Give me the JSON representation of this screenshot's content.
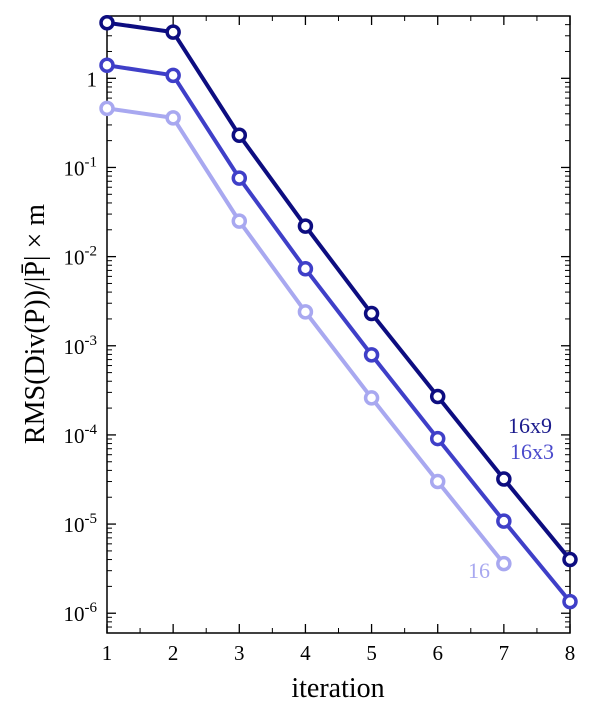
{
  "chart_data": {
    "type": "line",
    "title": "",
    "xlabel": "iteration",
    "ylabel": "RMS(Div(P))/|P̄| × m",
    "yscale": "log",
    "xlim": [
      1,
      8
    ],
    "ylim": [
      6e-07,
      5
    ],
    "grid": false,
    "xticks": [
      {
        "value": 1,
        "label": "1"
      },
      {
        "value": 2,
        "label": "2"
      },
      {
        "value": 3,
        "label": "3"
      },
      {
        "value": 4,
        "label": "4"
      },
      {
        "value": 5,
        "label": "5"
      },
      {
        "value": 6,
        "label": "6"
      },
      {
        "value": 7,
        "label": "7"
      },
      {
        "value": 8,
        "label": "8"
      }
    ],
    "yticks": [
      {
        "value": 1,
        "base": "1",
        "exp": ""
      },
      {
        "value": 0.1,
        "base": "10",
        "exp": "-1"
      },
      {
        "value": 0.01,
        "base": "10",
        "exp": "-2"
      },
      {
        "value": 0.001,
        "base": "10",
        "exp": "-3"
      },
      {
        "value": 0.0001,
        "base": "10",
        "exp": "-4"
      },
      {
        "value": 1e-05,
        "base": "10",
        "exp": "-5"
      },
      {
        "value": 1e-06,
        "base": "10",
        "exp": "-6"
      }
    ],
    "series": [
      {
        "name": "16x9",
        "color": "#0d0d80",
        "label_color": "#1a1a8c",
        "x": [
          1,
          2,
          3,
          4,
          5,
          6,
          7,
          8
        ],
        "values": [
          4.2,
          3.3,
          0.23,
          0.022,
          0.0023,
          0.00027,
          3.2e-05,
          4e-06
        ]
      },
      {
        "name": "16x3",
        "color": "#3f3fc8",
        "label_color": "#4a4acc",
        "x": [
          1,
          2,
          3,
          4,
          5,
          6,
          7,
          8
        ],
        "values": [
          1.4,
          1.08,
          0.076,
          0.0073,
          0.00079,
          9.1e-05,
          1.08e-05,
          1.35e-06
        ]
      },
      {
        "name": "16",
        "color": "#a8a8f0",
        "label_color": "#a8a8f0",
        "x": [
          1,
          2,
          3,
          4,
          5,
          6,
          7
        ],
        "values": [
          0.46,
          0.36,
          0.025,
          0.0024,
          0.00026,
          3e-05,
          3.6e-06
        ]
      }
    ]
  }
}
